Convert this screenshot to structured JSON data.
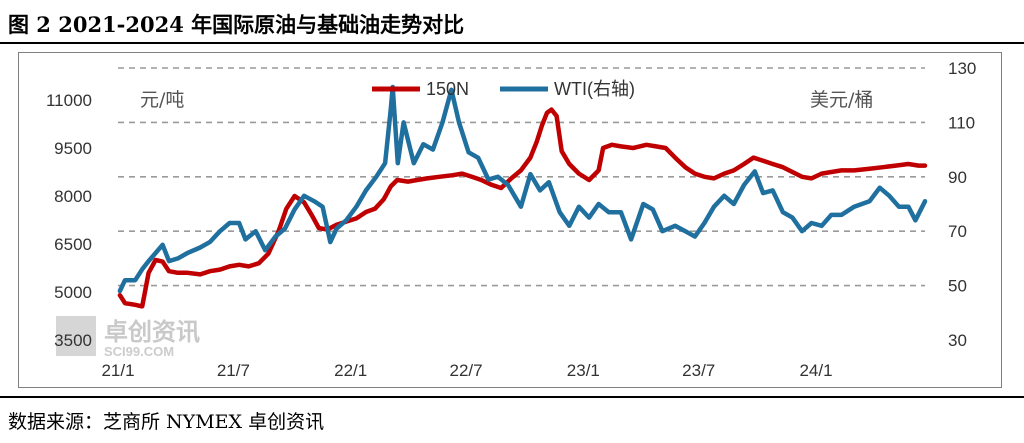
{
  "title": "图 2   2021-2024 年国际原油与基础油走势对比",
  "source": "数据来源：芝商所 NYMEX  卓创资讯",
  "watermark": {
    "text": "卓创资讯",
    "sub": "SCI99.COM"
  },
  "colors": {
    "series_150n": "#c00000",
    "series_wti": "#1f6f9f",
    "grid": "#9a9a9a"
  },
  "chart_data": {
    "type": "line",
    "left_axis": {
      "unit_label": "元/吨",
      "range": [
        3500,
        11000
      ],
      "ticks": [
        3500,
        5000,
        6500,
        8000,
        9500,
        11000
      ]
    },
    "right_axis": {
      "unit_label": "美元/桶",
      "range": [
        30,
        130
      ],
      "ticks": [
        30,
        50,
        70,
        90,
        110,
        130
      ]
    },
    "x_range": [
      "2021-01-01",
      "2024-06-20"
    ],
    "x_ticks": [
      {
        "date": "2021-01-01",
        "label": "21/1"
      },
      {
        "date": "2021-07-01",
        "label": "21/7"
      },
      {
        "date": "2022-01-01",
        "label": "22/1"
      },
      {
        "date": "2022-07-01",
        "label": "22/7"
      },
      {
        "date": "2023-01-01",
        "label": "23/1"
      },
      {
        "date": "2023-07-01",
        "label": "23/7"
      },
      {
        "date": "2024-01-01",
        "label": "24/1"
      }
    ],
    "grid": "horizontal dashed",
    "legend_position": "top-center",
    "series": [
      {
        "name": "150N",
        "axis": "left",
        "points": [
          [
            "2021-01-04",
            4900
          ],
          [
            "2021-01-12",
            4650
          ],
          [
            "2021-01-28",
            4600
          ],
          [
            "2021-02-08",
            4550
          ],
          [
            "2021-02-18",
            5600
          ],
          [
            "2021-03-01",
            6000
          ],
          [
            "2021-03-12",
            5950
          ],
          [
            "2021-03-22",
            5650
          ],
          [
            "2021-04-05",
            5600
          ],
          [
            "2021-04-20",
            5600
          ],
          [
            "2021-05-10",
            5550
          ],
          [
            "2021-05-25",
            5650
          ],
          [
            "2021-06-10",
            5700
          ],
          [
            "2021-06-25",
            5800
          ],
          [
            "2021-07-10",
            5850
          ],
          [
            "2021-07-25",
            5800
          ],
          [
            "2021-08-10",
            5900
          ],
          [
            "2021-08-25",
            6200
          ],
          [
            "2021-09-10",
            6900
          ],
          [
            "2021-09-22",
            7600
          ],
          [
            "2021-10-05",
            8000
          ],
          [
            "2021-10-20",
            7800
          ],
          [
            "2021-11-01",
            7400
          ],
          [
            "2021-11-12",
            7000
          ],
          [
            "2021-11-25",
            6950
          ],
          [
            "2021-12-10",
            7100
          ],
          [
            "2021-12-25",
            7200
          ],
          [
            "2022-01-10",
            7300
          ],
          [
            "2022-01-25",
            7500
          ],
          [
            "2022-02-08",
            7600
          ],
          [
            "2022-02-22",
            7900
          ],
          [
            "2022-03-05",
            8300
          ],
          [
            "2022-03-15",
            8500
          ],
          [
            "2022-04-01",
            8450
          ],
          [
            "2022-04-15",
            8500
          ],
          [
            "2022-05-01",
            8550
          ],
          [
            "2022-05-20",
            8600
          ],
          [
            "2022-06-10",
            8650
          ],
          [
            "2022-06-25",
            8700
          ],
          [
            "2022-07-10",
            8600
          ],
          [
            "2022-07-25",
            8500
          ],
          [
            "2022-08-10",
            8350
          ],
          [
            "2022-08-25",
            8250
          ],
          [
            "2022-09-10",
            8550
          ],
          [
            "2022-09-25",
            8800
          ],
          [
            "2022-10-10",
            9200
          ],
          [
            "2022-10-20",
            9700
          ],
          [
            "2022-10-28",
            10200
          ],
          [
            "2022-11-05",
            10600
          ],
          [
            "2022-11-12",
            10700
          ],
          [
            "2022-11-20",
            10500
          ],
          [
            "2022-11-28",
            9400
          ],
          [
            "2022-12-10",
            9000
          ],
          [
            "2022-12-25",
            8700
          ],
          [
            "2023-01-10",
            8500
          ],
          [
            "2023-01-25",
            8800
          ],
          [
            "2023-02-01",
            9500
          ],
          [
            "2023-02-15",
            9600
          ],
          [
            "2023-03-01",
            9550
          ],
          [
            "2023-03-20",
            9500
          ],
          [
            "2023-04-10",
            9600
          ],
          [
            "2023-04-25",
            9550
          ],
          [
            "2023-05-10",
            9500
          ],
          [
            "2023-05-25",
            9200
          ],
          [
            "2023-06-10",
            8900
          ],
          [
            "2023-06-25",
            8700
          ],
          [
            "2023-07-10",
            8600
          ],
          [
            "2023-07-25",
            8550
          ],
          [
            "2023-08-10",
            8700
          ],
          [
            "2023-08-25",
            8800
          ],
          [
            "2023-09-10",
            9000
          ],
          [
            "2023-09-25",
            9200
          ],
          [
            "2023-10-10",
            9100
          ],
          [
            "2023-10-25",
            9000
          ],
          [
            "2023-11-10",
            8900
          ],
          [
            "2023-11-25",
            8750
          ],
          [
            "2023-12-10",
            8600
          ],
          [
            "2023-12-25",
            8550
          ],
          [
            "2024-01-10",
            8700
          ],
          [
            "2024-01-25",
            8750
          ],
          [
            "2024-02-10",
            8800
          ],
          [
            "2024-03-01",
            8800
          ],
          [
            "2024-03-25",
            8850
          ],
          [
            "2024-04-15",
            8900
          ],
          [
            "2024-05-05",
            8950
          ],
          [
            "2024-05-25",
            9000
          ],
          [
            "2024-06-10",
            8950
          ],
          [
            "2024-06-20",
            8950
          ]
        ]
      },
      {
        "name": "WTI(右轴)",
        "axis": "right",
        "points": [
          [
            "2021-01-04",
            48
          ],
          [
            "2021-01-12",
            52
          ],
          [
            "2021-01-28",
            52
          ],
          [
            "2021-02-08",
            56
          ],
          [
            "2021-02-18",
            59
          ],
          [
            "2021-03-01",
            62
          ],
          [
            "2021-03-12",
            65
          ],
          [
            "2021-03-22",
            59
          ],
          [
            "2021-04-05",
            60
          ],
          [
            "2021-04-20",
            62
          ],
          [
            "2021-05-10",
            64
          ],
          [
            "2021-05-25",
            66
          ],
          [
            "2021-06-10",
            70
          ],
          [
            "2021-06-25",
            73
          ],
          [
            "2021-07-10",
            73
          ],
          [
            "2021-07-20",
            67
          ],
          [
            "2021-08-05",
            70
          ],
          [
            "2021-08-20",
            63
          ],
          [
            "2021-09-05",
            68
          ],
          [
            "2021-09-20",
            71
          ],
          [
            "2021-10-05",
            78
          ],
          [
            "2021-10-20",
            83
          ],
          [
            "2021-11-05",
            81
          ],
          [
            "2021-11-18",
            79
          ],
          [
            "2021-11-30",
            66
          ],
          [
            "2021-12-10",
            71
          ],
          [
            "2021-12-25",
            74
          ],
          [
            "2022-01-10",
            79
          ],
          [
            "2022-01-25",
            85
          ],
          [
            "2022-02-10",
            90
          ],
          [
            "2022-02-24",
            95
          ],
          [
            "2022-03-05",
            115
          ],
          [
            "2022-03-08",
            123
          ],
          [
            "2022-03-16",
            95
          ],
          [
            "2022-03-25",
            110
          ],
          [
            "2022-04-10",
            95
          ],
          [
            "2022-04-25",
            102
          ],
          [
            "2022-05-10",
            100
          ],
          [
            "2022-05-25",
            110
          ],
          [
            "2022-06-08",
            122
          ],
          [
            "2022-06-20",
            110
          ],
          [
            "2022-07-05",
            99
          ],
          [
            "2022-07-20",
            97
          ],
          [
            "2022-08-05",
            89
          ],
          [
            "2022-08-20",
            90
          ],
          [
            "2022-09-05",
            87
          ],
          [
            "2022-09-25",
            79
          ],
          [
            "2022-10-10",
            91
          ],
          [
            "2022-10-25",
            85
          ],
          [
            "2022-11-08",
            88
          ],
          [
            "2022-11-25",
            77
          ],
          [
            "2022-12-10",
            72
          ],
          [
            "2022-12-25",
            79
          ],
          [
            "2023-01-10",
            75
          ],
          [
            "2023-01-25",
            80
          ],
          [
            "2023-02-10",
            77
          ],
          [
            "2023-03-01",
            77
          ],
          [
            "2023-03-17",
            67
          ],
          [
            "2023-04-05",
            80
          ],
          [
            "2023-04-20",
            78
          ],
          [
            "2023-05-05",
            70
          ],
          [
            "2023-05-25",
            72
          ],
          [
            "2023-06-10",
            70
          ],
          [
            "2023-06-25",
            68
          ],
          [
            "2023-07-10",
            73
          ],
          [
            "2023-07-25",
            79
          ],
          [
            "2023-08-10",
            83
          ],
          [
            "2023-08-25",
            80
          ],
          [
            "2023-09-10",
            87
          ],
          [
            "2023-09-27",
            92
          ],
          [
            "2023-10-10",
            84
          ],
          [
            "2023-10-25",
            85
          ],
          [
            "2023-11-10",
            77
          ],
          [
            "2023-11-25",
            75
          ],
          [
            "2023-12-10",
            70
          ],
          [
            "2023-12-25",
            73
          ],
          [
            "2024-01-10",
            72
          ],
          [
            "2024-01-25",
            76
          ],
          [
            "2024-02-10",
            76
          ],
          [
            "2024-03-01",
            79
          ],
          [
            "2024-03-25",
            81
          ],
          [
            "2024-04-10",
            86
          ],
          [
            "2024-04-25",
            83
          ],
          [
            "2024-05-10",
            79
          ],
          [
            "2024-05-25",
            79
          ],
          [
            "2024-06-05",
            74
          ],
          [
            "2024-06-20",
            81
          ]
        ]
      }
    ]
  }
}
